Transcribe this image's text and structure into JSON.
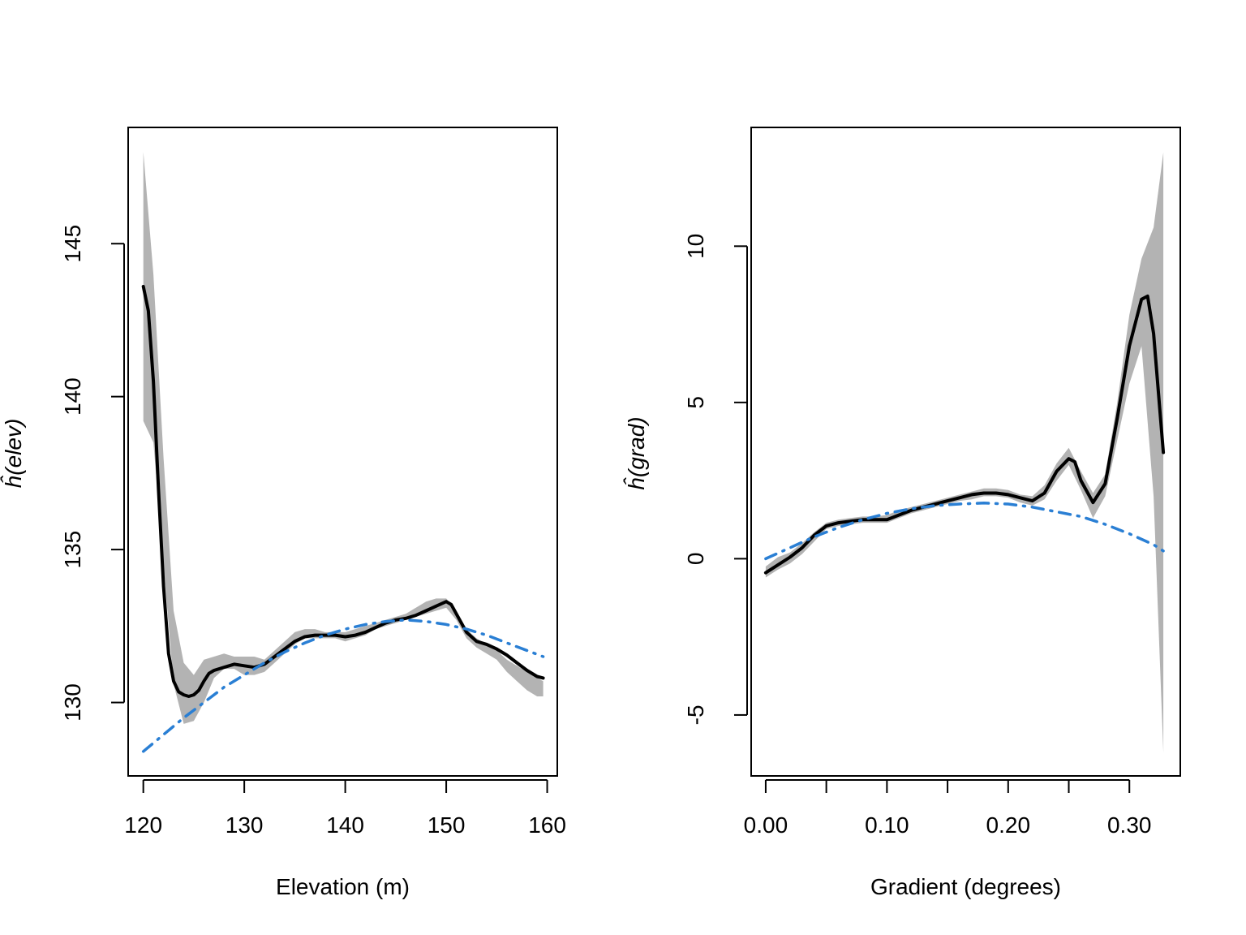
{
  "colors": {
    "band": "#b3b3b3",
    "smooth": "#000000",
    "parametric": "#2a7fd4",
    "frame": "#000000"
  },
  "chart_data": [
    {
      "type": "line",
      "xlabel": "Elevation (m)",
      "ylabel": "ĥ(elev)",
      "xlim": [
        118.5,
        161
      ],
      "ylim": [
        127.6,
        148.8
      ],
      "xticks": [
        120,
        130,
        140,
        150,
        160
      ],
      "xtick_labels": [
        "120",
        "130",
        "140",
        "150",
        "160"
      ],
      "yticks": [
        130,
        135,
        140,
        145
      ],
      "ytick_labels": [
        "130",
        "135",
        "140",
        "145"
      ],
      "band": {
        "x": [
          120,
          121,
          122,
          123,
          124,
          125,
          126,
          127,
          128,
          129,
          130,
          131,
          132,
          133,
          134,
          135,
          136,
          137,
          138,
          139,
          140,
          141,
          142,
          143,
          144,
          145,
          146,
          147,
          148,
          149,
          150,
          151,
          152,
          153,
          154,
          155,
          156,
          157,
          158,
          159,
          159.6
        ],
        "lower": [
          139.2,
          138.5,
          134.5,
          130.6,
          129.3,
          129.4,
          130.0,
          130.8,
          131.1,
          131.1,
          130.9,
          130.9,
          131.0,
          131.3,
          131.6,
          131.9,
          132.1,
          132.1,
          132.1,
          132.1,
          132.0,
          132.1,
          132.2,
          132.4,
          132.5,
          132.6,
          132.7,
          132.8,
          132.9,
          133.0,
          133.1,
          132.7,
          132.1,
          131.8,
          131.6,
          131.4,
          131.0,
          130.7,
          130.4,
          130.2,
          130.2
        ],
        "upper": [
          148.0,
          144.0,
          138.0,
          133.0,
          131.3,
          130.9,
          131.4,
          131.5,
          131.6,
          131.5,
          131.5,
          131.5,
          131.4,
          131.7,
          132.0,
          132.3,
          132.4,
          132.4,
          132.3,
          132.3,
          132.3,
          132.4,
          132.5,
          132.6,
          132.7,
          132.8,
          132.9,
          133.1,
          133.3,
          133.4,
          133.4,
          133.0,
          132.4,
          132.1,
          131.9,
          131.7,
          131.4,
          131.2,
          131.0,
          130.8,
          130.7
        ]
      },
      "series": [
        {
          "style": "solid",
          "x": [
            120,
            120.5,
            121,
            121.5,
            122,
            122.5,
            123,
            123.5,
            124,
            124.5,
            125,
            125.5,
            126,
            126.5,
            127,
            128,
            129,
            130,
            131,
            132,
            133,
            134,
            135,
            136,
            137,
            138,
            139,
            140,
            141,
            142,
            143,
            144,
            145,
            146,
            147,
            148,
            149,
            150,
            150.5,
            151,
            152,
            153,
            154,
            155,
            156,
            157,
            158,
            159,
            159.6
          ],
          "y": [
            143.6,
            142.8,
            140.5,
            137.0,
            133.8,
            131.6,
            130.7,
            130.35,
            130.25,
            130.2,
            130.25,
            130.4,
            130.7,
            130.95,
            131.05,
            131.15,
            131.25,
            131.2,
            131.15,
            131.25,
            131.5,
            131.75,
            132.0,
            132.15,
            132.2,
            132.2,
            132.2,
            132.15,
            132.2,
            132.3,
            132.45,
            132.6,
            132.7,
            132.75,
            132.85,
            133.0,
            133.15,
            133.3,
            133.2,
            132.9,
            132.3,
            132.0,
            131.9,
            131.75,
            131.55,
            131.3,
            131.05,
            130.85,
            130.8
          ]
        },
        {
          "style": "dashdot",
          "x": [
            120,
            122,
            124,
            126,
            128,
            130,
            132,
            134,
            136,
            138,
            140,
            142,
            144,
            146,
            148,
            150,
            152,
            154,
            156,
            158,
            159.6
          ],
          "y": [
            128.4,
            128.95,
            129.5,
            130.0,
            130.5,
            130.9,
            131.3,
            131.65,
            131.95,
            132.2,
            132.4,
            132.55,
            132.65,
            132.7,
            132.65,
            132.55,
            132.4,
            132.2,
            131.95,
            131.7,
            131.5
          ]
        }
      ]
    },
    {
      "type": "line",
      "xlabel": "Gradient (degrees)",
      "ylabel": "ĥ(grad)",
      "xlim": [
        -0.012,
        0.342
      ],
      "ylim": [
        -6.95,
        13.8
      ],
      "xticks": [
        0.0,
        0.05,
        0.1,
        0.15,
        0.2,
        0.25,
        0.3
      ],
      "xtick_labels": [
        "0.00",
        "",
        "0.10",
        "",
        "0.20",
        "",
        "0.30"
      ],
      "yticks": [
        -5,
        0,
        5,
        10
      ],
      "ytick_labels": [
        "-5",
        "0",
        "5",
        "10"
      ],
      "band": {
        "x": [
          0.0,
          0.01,
          0.02,
          0.03,
          0.04,
          0.05,
          0.06,
          0.07,
          0.08,
          0.09,
          0.1,
          0.11,
          0.12,
          0.13,
          0.14,
          0.15,
          0.16,
          0.17,
          0.18,
          0.19,
          0.2,
          0.21,
          0.22,
          0.23,
          0.24,
          0.25,
          0.26,
          0.27,
          0.28,
          0.29,
          0.3,
          0.31,
          0.32,
          0.328
        ],
        "lower": [
          -0.6,
          -0.35,
          -0.15,
          0.15,
          0.55,
          0.95,
          1.05,
          1.1,
          1.15,
          1.15,
          1.15,
          1.3,
          1.45,
          1.55,
          1.65,
          1.75,
          1.85,
          1.9,
          2.0,
          2.0,
          1.95,
          1.8,
          1.7,
          1.9,
          2.5,
          3.0,
          2.2,
          1.3,
          2.0,
          3.8,
          5.6,
          6.8,
          2.0,
          -6.2
        ],
        "upper": [
          -0.25,
          0.05,
          0.2,
          0.5,
          0.85,
          1.15,
          1.25,
          1.3,
          1.35,
          1.35,
          1.4,
          1.55,
          1.65,
          1.75,
          1.85,
          1.95,
          2.05,
          2.15,
          2.25,
          2.25,
          2.2,
          2.05,
          2.0,
          2.35,
          3.05,
          3.55,
          2.8,
          2.1,
          2.7,
          5.0,
          7.8,
          9.6,
          10.6,
          13.0
        ]
      },
      "series": [
        {
          "style": "solid",
          "x": [
            0.0,
            0.01,
            0.02,
            0.03,
            0.04,
            0.05,
            0.06,
            0.07,
            0.08,
            0.09,
            0.1,
            0.11,
            0.12,
            0.13,
            0.14,
            0.15,
            0.16,
            0.17,
            0.18,
            0.19,
            0.2,
            0.21,
            0.22,
            0.23,
            0.24,
            0.25,
            0.255,
            0.26,
            0.27,
            0.28,
            0.29,
            0.3,
            0.31,
            0.315,
            0.32,
            0.328
          ],
          "y": [
            -0.45,
            -0.2,
            0.05,
            0.35,
            0.75,
            1.05,
            1.15,
            1.2,
            1.25,
            1.25,
            1.25,
            1.4,
            1.55,
            1.65,
            1.75,
            1.85,
            1.95,
            2.05,
            2.1,
            2.1,
            2.05,
            1.95,
            1.85,
            2.1,
            2.8,
            3.2,
            3.1,
            2.5,
            1.8,
            2.4,
            4.5,
            6.8,
            8.3,
            8.4,
            7.2,
            3.4
          ]
        },
        {
          "style": "dashdot",
          "x": [
            0.0,
            0.02,
            0.04,
            0.06,
            0.08,
            0.1,
            0.12,
            0.14,
            0.16,
            0.18,
            0.2,
            0.22,
            0.24,
            0.26,
            0.28,
            0.3,
            0.32,
            0.328
          ],
          "y": [
            0.0,
            0.35,
            0.7,
            1.0,
            1.25,
            1.45,
            1.6,
            1.7,
            1.75,
            1.78,
            1.75,
            1.65,
            1.5,
            1.35,
            1.1,
            0.8,
            0.45,
            0.25
          ]
        }
      ]
    }
  ]
}
